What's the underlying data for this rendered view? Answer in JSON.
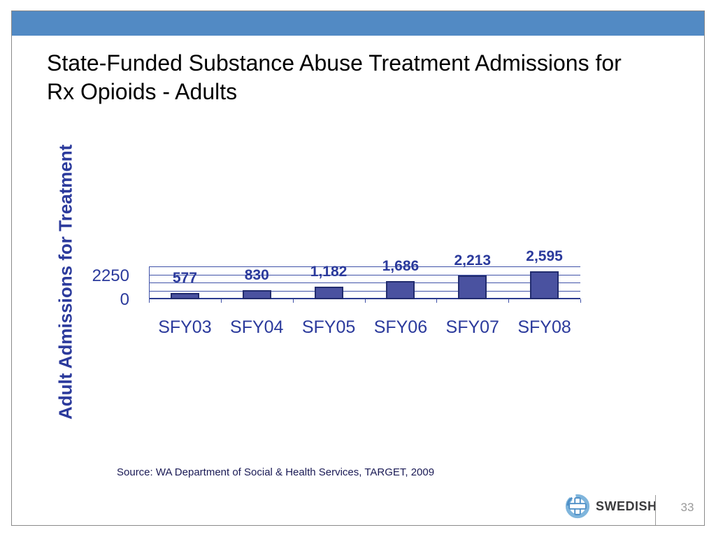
{
  "slide": {
    "title_lines": [
      "State-Funded Substance Abuse Treatment Admissions for",
      "Rx Opioids - Adults"
    ],
    "source_text": "Source: WA Department of Social & Health Services, TARGET, 2009",
    "header_color": "#528ac4",
    "footer": {
      "brand": "SWEDISH",
      "logo_icon": "cross-in-circle-icon",
      "page_number": "33"
    }
  },
  "chart_data": {
    "type": "bar",
    "title": "",
    "xlabel": "",
    "ylabel": "Adult Admissions for Treatment",
    "categories": [
      "SFY03",
      "SFY04",
      "SFY05",
      "SFY06",
      "SFY07",
      "SFY08"
    ],
    "values": [
      577,
      830,
      1182,
      1686,
      2213,
      2595
    ],
    "value_labels": [
      "577",
      "830",
      "1,182",
      "1,686",
      "2,213",
      "2,595"
    ],
    "ylim": [
      0,
      3000
    ],
    "gridline_step": 750,
    "grid": true,
    "legend": "none",
    "ytick_labels_visible": [
      {
        "label": "2250",
        "value": 2250
      },
      {
        "label": "0",
        "value": 0
      }
    ],
    "colors": {
      "bar_fill": "#4a52a0",
      "bar_border": "#222c6e",
      "gridline": "#4052a8",
      "axis_text": "#2b3a9c"
    }
  }
}
